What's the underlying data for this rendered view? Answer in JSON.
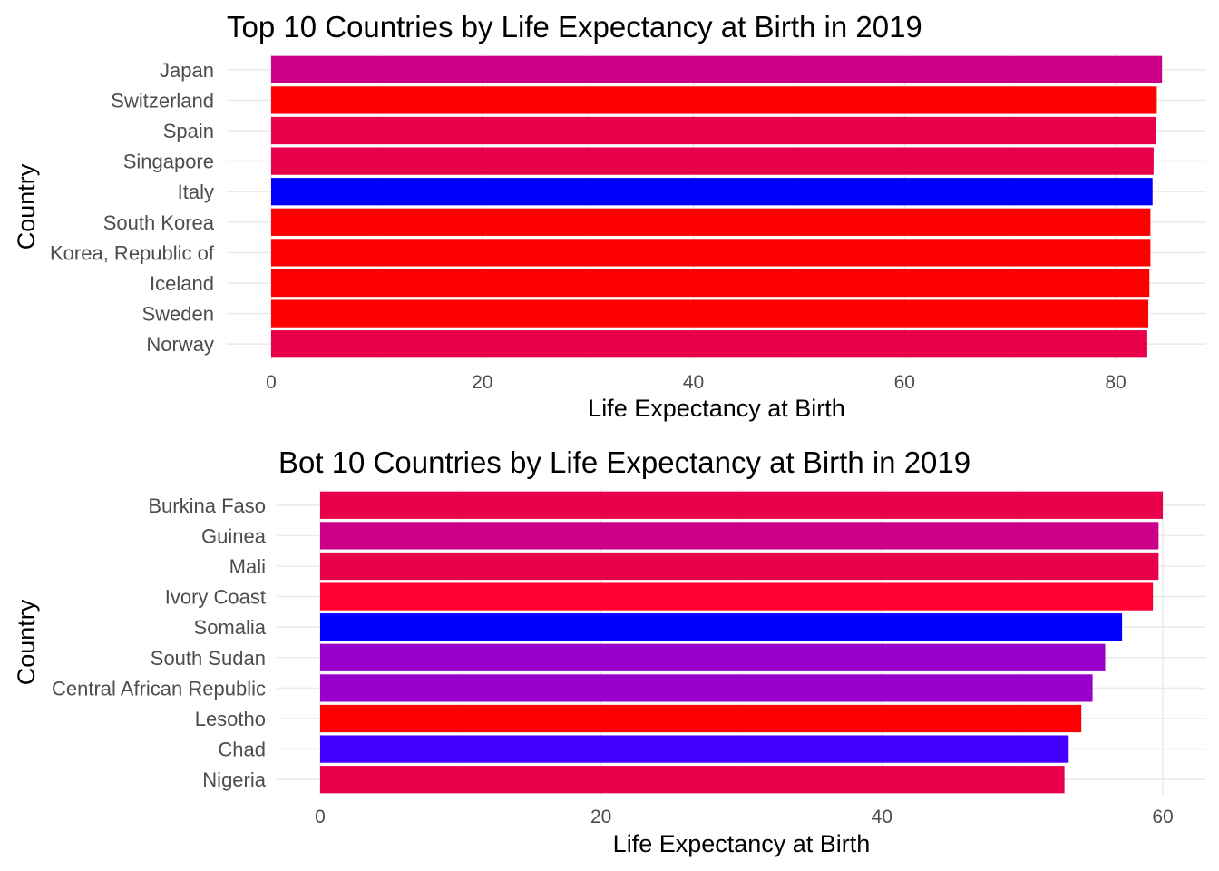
{
  "chart_data": [
    {
      "type": "bar",
      "orientation": "horizontal",
      "title": "Top 10 Countries by Life Expectancy at Birth in 2019",
      "xlabel": "Life Expectancy at Birth",
      "ylabel": "Country",
      "categories": [
        "Japan",
        "Switzerland",
        "Spain",
        "Singapore",
        "Italy",
        "South Korea",
        "Korea, Republic of",
        "Iceland",
        "Sweden",
        "Norway"
      ],
      "values": [
        84.4,
        83.9,
        83.8,
        83.6,
        83.5,
        83.3,
        83.3,
        83.2,
        83.1,
        83.0
      ],
      "colors": [
        "#cc0088",
        "#ff0000",
        "#e8004a",
        "#e8004a",
        "#0000ff",
        "#ff0000",
        "#ff0000",
        "#ff0000",
        "#ff0000",
        "#e8004a"
      ],
      "xlim": [
        0,
        86
      ],
      "xticks": [
        0,
        20,
        40,
        60,
        80
      ],
      "grid": true,
      "legend": "none"
    },
    {
      "type": "bar",
      "orientation": "horizontal",
      "title": "Bot 10 Countries by Life Expectancy at Birth in 2019",
      "xlabel": "Life Expectancy at Birth",
      "ylabel": "Country",
      "categories": [
        "Burkina Faso",
        "Guinea",
        "Mali",
        "Ivory Coast",
        "Somalia",
        "South Sudan",
        "Central African Republic",
        "Lesotho",
        "Chad",
        "Nigeria"
      ],
      "values": [
        60.0,
        59.7,
        59.7,
        59.3,
        57.1,
        55.9,
        55.0,
        54.2,
        53.3,
        53.0
      ],
      "colors": [
        "#e8004a",
        "#cc0088",
        "#e8004a",
        "#ff0033",
        "#0000ff",
        "#9900cc",
        "#9900cc",
        "#ff0000",
        "#4400ff",
        "#e8004a"
      ],
      "xlim": [
        0,
        62
      ],
      "xticks": [
        0,
        20,
        40,
        60
      ],
      "grid": true,
      "legend": "none"
    }
  ]
}
